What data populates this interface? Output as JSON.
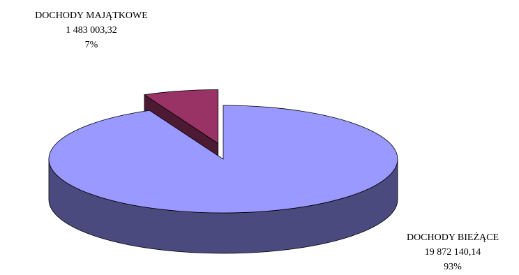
{
  "chart_data": {
    "type": "pie",
    "style": "3d-exploded",
    "series": [
      {
        "slices": [
          {
            "label": "DOCHODY BIEŻĄCE",
            "value_text": "19 872 140,14",
            "value": 19872140.14,
            "percent_text": "93%",
            "percent": 93,
            "color_top": "#9999ff",
            "color_side": "#4a4a7e"
          },
          {
            "label": "DOCHODY MAJĄTKOWE",
            "value_text": "1 483 003,32",
            "value": 1483003.32,
            "percent_text": "7%",
            "percent": 7,
            "color_top": "#993366",
            "color_side": "#4d1a33"
          }
        ]
      }
    ],
    "legend": "none"
  }
}
